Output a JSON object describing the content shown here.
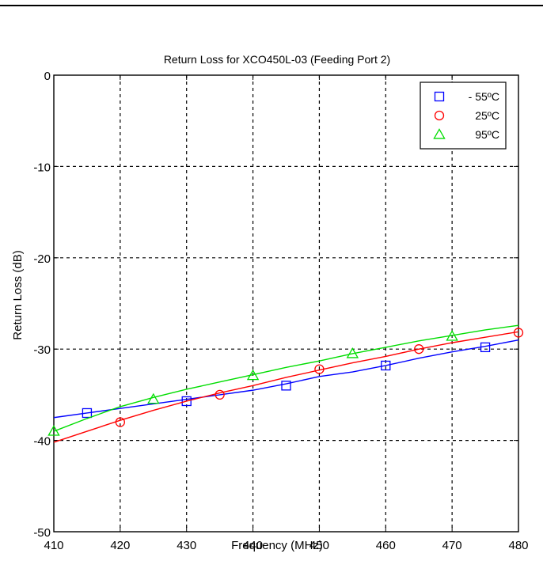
{
  "chart_data": {
    "type": "line",
    "title": "Return Loss for XCO450L-03 (Feeding Port 2)",
    "xlabel": "Frequency (MHz)",
    "ylabel": "Return Loss (dB)",
    "xlim": [
      410,
      480
    ],
    "ylim": [
      -50,
      0
    ],
    "xticks": [
      410,
      420,
      430,
      440,
      450,
      460,
      470,
      480
    ],
    "yticks": [
      0,
      -10,
      -20,
      -30,
      -40,
      -50
    ],
    "xtick_labels": [
      "410",
      "420",
      "430",
      "440",
      "450",
      "460",
      "470",
      "480"
    ],
    "ytick_labels": [
      "0",
      "-10",
      "-20",
      "-30",
      "-40",
      "-50"
    ],
    "grid": true,
    "legend_position": "top-right",
    "series": [
      {
        "name": "- 55ºC",
        "color": "#0000ff",
        "marker": "square",
        "curve_x": [
          410,
          415,
          420,
          425,
          430,
          435,
          440,
          445,
          450,
          455,
          460,
          465,
          470,
          475,
          480
        ],
        "curve_y": [
          -37.5,
          -37.0,
          -36.5,
          -36.0,
          -35.5,
          -35.0,
          -34.5,
          -33.8,
          -33.0,
          -32.5,
          -31.8,
          -31.0,
          -30.3,
          -29.7,
          -29.0
        ],
        "marker_x": [
          415,
          430,
          445,
          460,
          475
        ],
        "marker_y": [
          -37.0,
          -35.7,
          -34.0,
          -31.8,
          -29.8
        ]
      },
      {
        "name": "25ºC",
        "color": "#ff0000",
        "marker": "circle",
        "curve_x": [
          410,
          415,
          420,
          425,
          430,
          435,
          440,
          445,
          450,
          455,
          460,
          465,
          470,
          475,
          480
        ],
        "curve_y": [
          -40.2,
          -39.0,
          -37.8,
          -36.7,
          -35.7,
          -34.8,
          -34.0,
          -33.1,
          -32.3,
          -31.5,
          -30.8,
          -30.0,
          -29.3,
          -28.7,
          -28.1
        ],
        "marker_x": [
          420,
          435,
          450,
          465,
          480
        ],
        "marker_y": [
          -38.0,
          -35.0,
          -32.2,
          -30.0,
          -28.2
        ]
      },
      {
        "name": "95ºC",
        "color": "#00dd00",
        "marker": "triangle",
        "curve_x": [
          410,
          415,
          420,
          425,
          430,
          435,
          440,
          445,
          450,
          455,
          460,
          465,
          470,
          475,
          480
        ],
        "curve_y": [
          -39.0,
          -37.6,
          -36.3,
          -35.3,
          -34.4,
          -33.6,
          -32.8,
          -32.0,
          -31.3,
          -30.5,
          -29.8,
          -29.1,
          -28.5,
          -27.9,
          -27.4
        ],
        "marker_x": [
          410,
          425,
          440,
          455,
          470
        ],
        "marker_y": [
          -39.0,
          -35.5,
          -32.9,
          -30.5,
          -28.6
        ]
      }
    ]
  }
}
